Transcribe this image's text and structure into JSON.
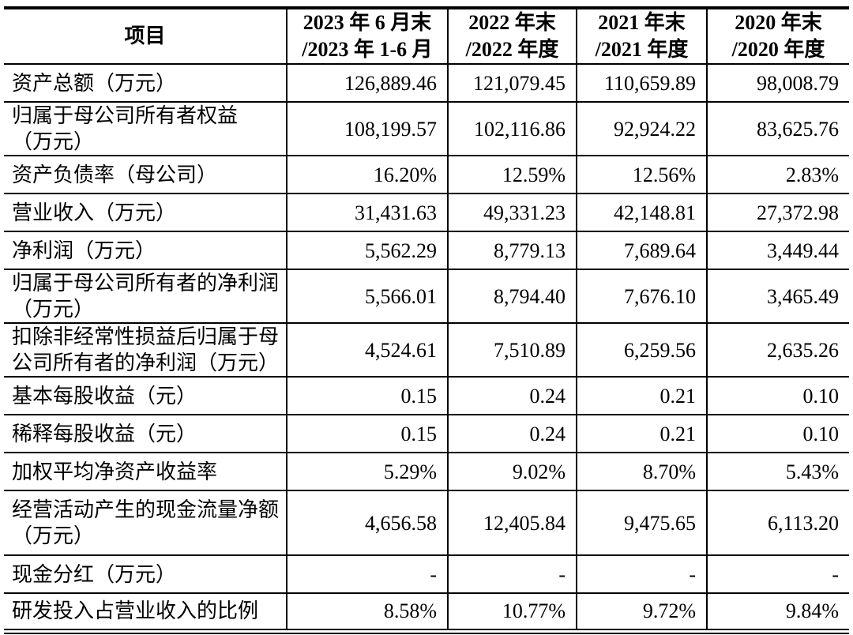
{
  "table": {
    "columns": [
      "项目",
      "2023 年 6 月末\n/2023 年 1-6 月",
      "2022 年末\n/2022 年度",
      "2021 年末\n/2021 年度",
      "2020 年末\n/2020 年度"
    ],
    "rows": [
      {
        "label": "资产总额（万元）",
        "values": [
          "126,889.46",
          "121,079.45",
          "110,659.89",
          "98,008.79"
        ]
      },
      {
        "label": "归属于母公司所有者权益\n（万元）",
        "values": [
          "108,199.57",
          "102,116.86",
          "92,924.22",
          "83,625.76"
        ]
      },
      {
        "label": "资产负债率（母公司）",
        "values": [
          "16.20%",
          "12.59%",
          "12.56%",
          "2.83%"
        ]
      },
      {
        "label": "营业收入（万元）",
        "values": [
          "31,431.63",
          "49,331.23",
          "42,148.81",
          "27,372.98"
        ]
      },
      {
        "label": "净利润（万元）",
        "values": [
          "5,562.29",
          "8,779.13",
          "7,689.64",
          "3,449.44"
        ]
      },
      {
        "label": "归属于母公司所有者的净利润\n（万元）",
        "values": [
          "5,566.01",
          "8,794.40",
          "7,676.10",
          "3,465.49"
        ]
      },
      {
        "label": "扣除非经常性损益后归属于母\n公司所有者的净利润（万元）",
        "values": [
          "4,524.61",
          "7,510.89",
          "6,259.56",
          "2,635.26"
        ]
      },
      {
        "label": "基本每股收益（元）",
        "values": [
          "0.15",
          "0.24",
          "0.21",
          "0.10"
        ]
      },
      {
        "label": "稀释每股收益（元）",
        "values": [
          "0.15",
          "0.24",
          "0.21",
          "0.10"
        ]
      },
      {
        "label": "加权平均净资产收益率",
        "values": [
          "5.29%",
          "9.02%",
          "8.70%",
          "5.43%"
        ]
      },
      {
        "label": "经营活动产生的现金流量净额\n（万元）",
        "values": [
          "4,656.58",
          "12,405.84",
          "9,475.65",
          "6,113.20"
        ]
      },
      {
        "label": "现金分红（万元）",
        "values": [
          "-",
          "-",
          "-",
          "-"
        ]
      },
      {
        "label": "研发投入占营业收入的比例",
        "values": [
          "8.58%",
          "10.77%",
          "9.72%",
          "9.84%"
        ]
      }
    ]
  }
}
